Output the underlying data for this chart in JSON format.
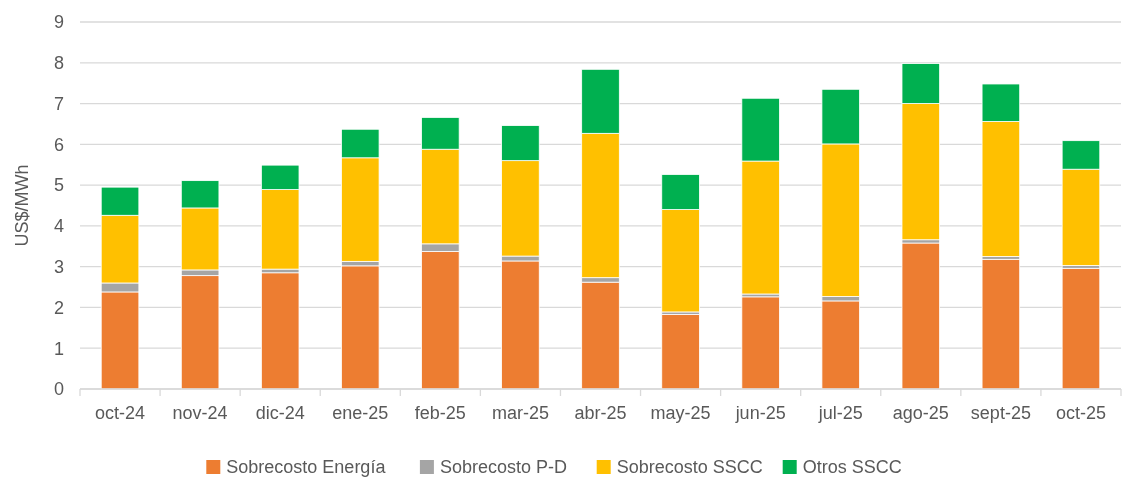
{
  "chart_data": {
    "type": "bar",
    "stacked": true,
    "ylabel": "US$/MWh",
    "categories": [
      "oct-24",
      "nov-24",
      "dic-24",
      "ene-25",
      "feb-25",
      "mar-25",
      "abr-25",
      "may-25",
      "jun-25",
      "jul-25",
      "ago-25",
      "sept-25",
      "oct-25"
    ],
    "series": [
      {
        "name": "Sobrecosto Energía",
        "color": "#ed7d31",
        "values": [
          2.38,
          2.78,
          2.85,
          3.02,
          3.37,
          3.14,
          2.62,
          1.83,
          2.26,
          2.16,
          3.58,
          3.18,
          2.96
        ]
      },
      {
        "name": "Sobrecosto P-D",
        "color": "#a5a5a5",
        "values": [
          0.22,
          0.14,
          0.09,
          0.11,
          0.19,
          0.12,
          0.11,
          0.06,
          0.07,
          0.11,
          0.08,
          0.07,
          0.07
        ]
      },
      {
        "name": "Sobrecosto SSCC",
        "color": "#ffc000",
        "values": [
          1.66,
          1.52,
          1.95,
          2.54,
          2.32,
          2.34,
          3.54,
          2.51,
          3.26,
          3.74,
          3.34,
          3.31,
          2.36
        ]
      },
      {
        "name": "Otros SSCC",
        "color": "#00b050",
        "values": [
          0.69,
          0.67,
          0.6,
          0.7,
          0.78,
          0.86,
          1.57,
          0.86,
          1.54,
          1.34,
          0.98,
          0.92,
          0.7
        ]
      }
    ],
    "ylim": [
      0,
      9
    ],
    "yticks": [
      0,
      1,
      2,
      3,
      4,
      5,
      6,
      7,
      8,
      9
    ],
    "grid": "y",
    "legend": "bottom"
  }
}
